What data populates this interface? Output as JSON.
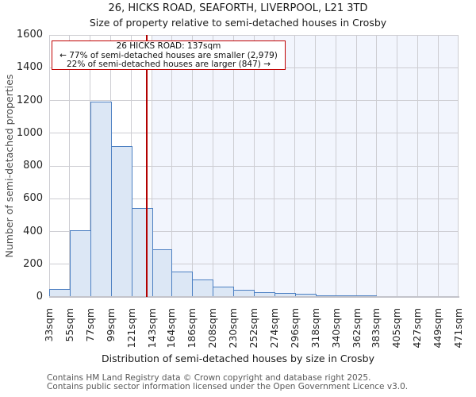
{
  "chart_data": {
    "type": "bar",
    "title": "26, HICKS ROAD, SEAFORTH, LIVERPOOL, L21 3TD",
    "subtitle": "Size of property relative to semi-detached houses in Crosby",
    "xlabel": "Distribution of semi-detached houses by size in Crosby",
    "ylabel": "Number of semi-detached properties",
    "ylim": [
      0,
      1600
    ],
    "y_ticks": [
      0,
      200,
      400,
      600,
      800,
      1000,
      1200,
      1400,
      1600
    ],
    "bin_edges_sqm": [
      33,
      55,
      77,
      99,
      121,
      143,
      164,
      186,
      208,
      230,
      252,
      274,
      296,
      318,
      340,
      362,
      383,
      405,
      427,
      449,
      471
    ],
    "x_tick_labels": [
      "33sqm",
      "55sqm",
      "77sqm",
      "99sqm",
      "121sqm",
      "143sqm",
      "164sqm",
      "186sqm",
      "208sqm",
      "230sqm",
      "252sqm",
      "274sqm",
      "296sqm",
      "318sqm",
      "340sqm",
      "362sqm",
      "383sqm",
      "405sqm",
      "427sqm",
      "449sqm",
      "471sqm"
    ],
    "counts": [
      50,
      405,
      1195,
      920,
      545,
      290,
      155,
      105,
      65,
      45,
      28,
      24,
      18,
      10,
      6,
      5,
      0,
      0,
      0,
      0
    ],
    "grid": true,
    "legend": false,
    "marker": {
      "value_sqm": 137,
      "shade_from_sqm": 143,
      "line_color": "#b20000",
      "shade_color": "#f2f5fd"
    },
    "annotation": {
      "line1": "26 HICKS ROAD: 137sqm",
      "line2": "← 77% of semi-detached houses are smaller (2,979)",
      "line3": "22% of semi-detached houses are larger (847) →"
    },
    "colors": {
      "bar_fill": "#dce7f5",
      "bar_edge": "#4d80c2",
      "grid_line": "#cdcdd2",
      "annotation_border": "#c00000"
    }
  },
  "footer": {
    "line1": "Contains HM Land Registry data © Crown copyright and database right 2025.",
    "line2": "Contains public sector information licensed under the Open Government Licence v3.0."
  }
}
